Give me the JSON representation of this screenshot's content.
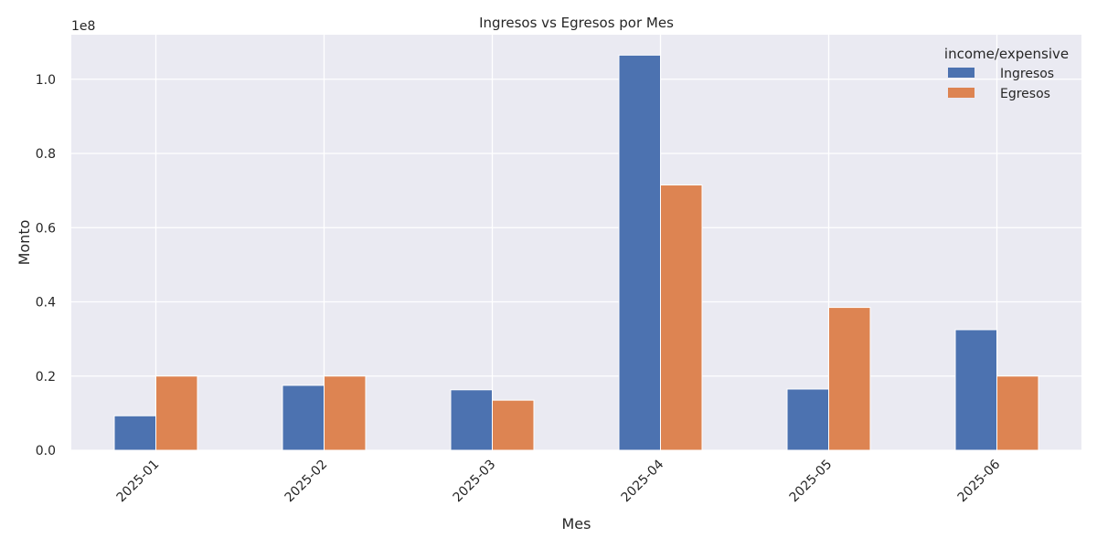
{
  "chart_data": {
    "type": "bar",
    "title": "Ingresos vs Egresos por Mes",
    "xlabel": "Mes",
    "ylabel": "Monto",
    "y_offset_label": "1e8",
    "y_multiplier": 100000000,
    "ylim": [
      0,
      1.12
    ],
    "yticks": [
      0.0,
      0.2,
      0.4,
      0.6,
      0.8,
      1.0
    ],
    "ytick_labels": [
      "0.0",
      "0.2",
      "0.4",
      "0.6",
      "0.8",
      "1.0"
    ],
    "grid": true,
    "legend_title": "income/expensive",
    "legend_position": "top-right",
    "categories": [
      "2025-01",
      "2025-02",
      "2025-03",
      "2025-04",
      "2025-05",
      "2025-06"
    ],
    "series": [
      {
        "name": "Ingresos",
        "color": "#4c72b0",
        "values": [
          0.093,
          0.175,
          0.163,
          1.065,
          0.165,
          0.325
        ]
      },
      {
        "name": "Egresos",
        "color": "#dd8452",
        "values": [
          0.2,
          0.2,
          0.135,
          0.715,
          0.385,
          0.2
        ]
      }
    ]
  },
  "colors": {
    "plot_background": "#eaeaf2",
    "grid": "#ffffff",
    "text": "#262626"
  }
}
